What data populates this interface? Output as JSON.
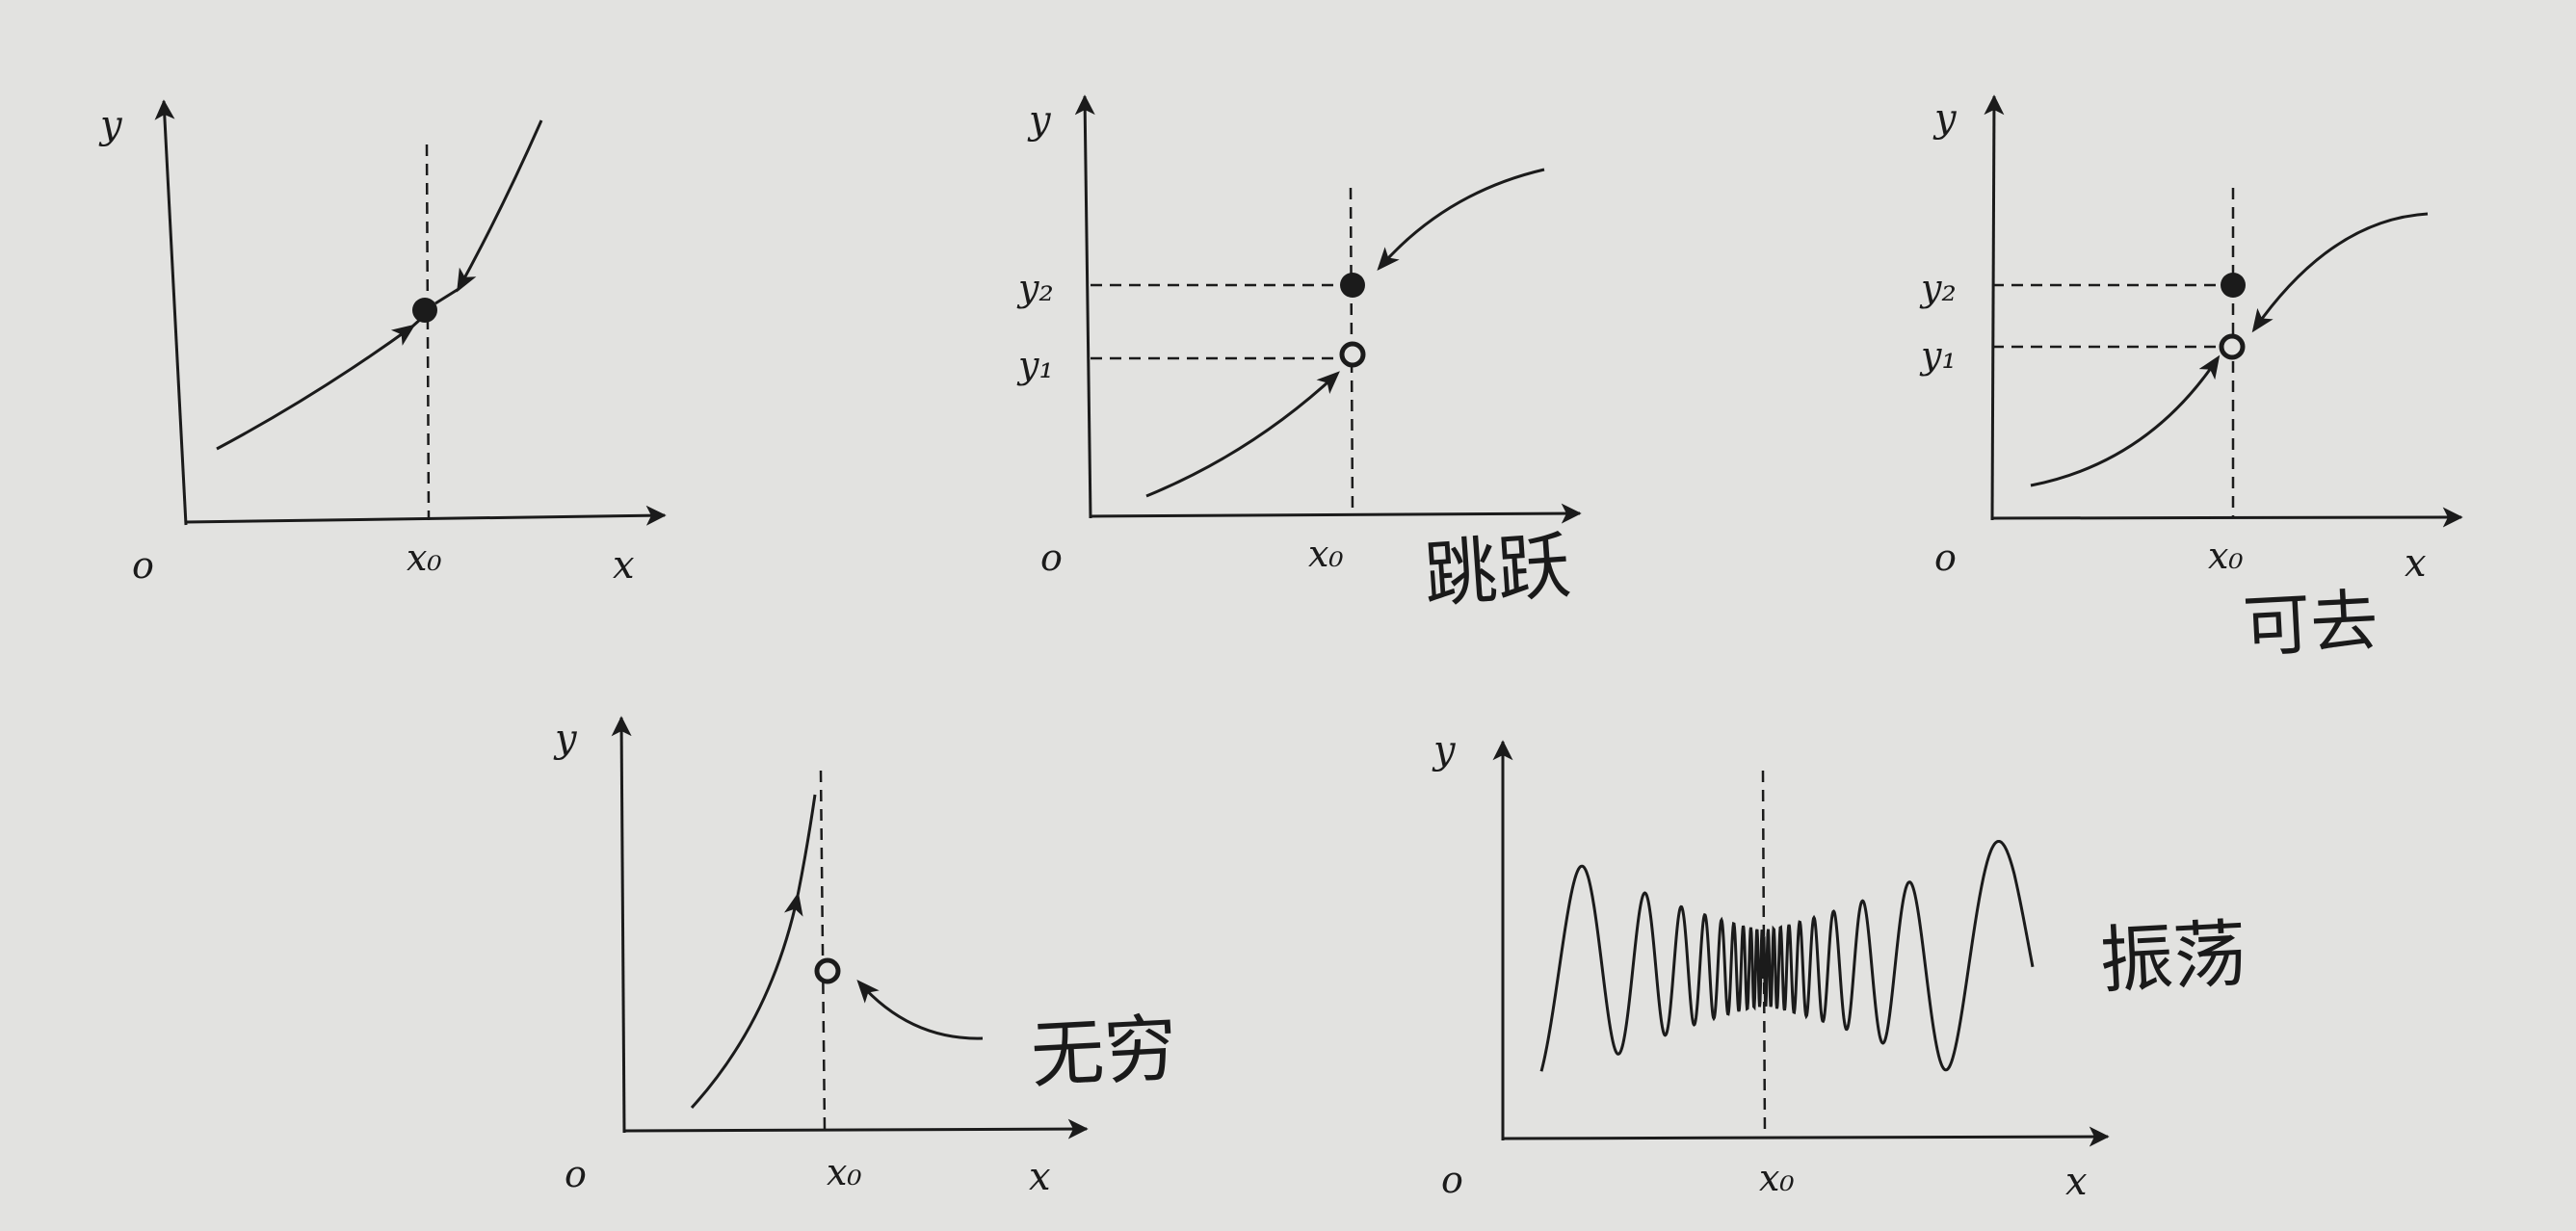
{
  "figure": {
    "panel_continuous": {
      "axis_x": "x",
      "axis_y": "y",
      "origin": "o",
      "x_marker": "x₀"
    },
    "panel_jump": {
      "axis_x": "x",
      "axis_y": "y",
      "origin": "o",
      "x_marker": "x₀",
      "y_upper": "y₂",
      "y_lower": "y₁",
      "annotation": "跳跃"
    },
    "panel_removable": {
      "axis_x": "x",
      "axis_y": "y",
      "origin": "o",
      "x_marker": "x₀",
      "y_upper": "y₂",
      "y_lower": "y₁",
      "annotation": "可去"
    },
    "panel_infinite": {
      "axis_x": "x",
      "axis_y": "y",
      "origin": "o",
      "x_marker": "x₀",
      "annotation": "无穷"
    },
    "panel_oscillating": {
      "axis_x": "x",
      "axis_y": "y",
      "origin": "o",
      "x_marker": "x₀",
      "annotation": "振荡"
    }
  },
  "colors": {
    "paper": "#e2e2e0",
    "ink": "#1b1b1b",
    "pen": "#141414"
  }
}
